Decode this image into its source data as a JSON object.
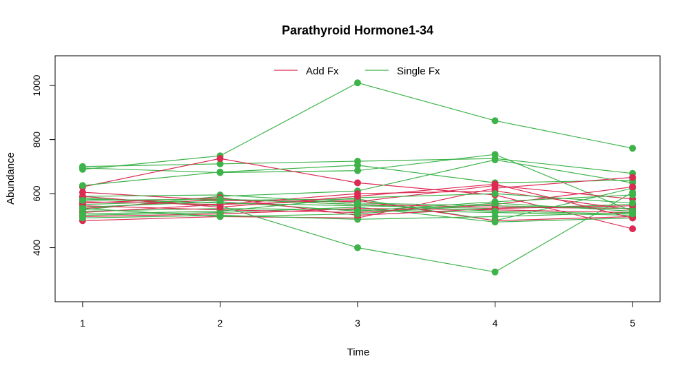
{
  "chart_data": {
    "type": "line",
    "title": "Parathyroid Hormone1-34",
    "xlabel": "Time",
    "ylabel": "Abundance",
    "x": [
      1,
      2,
      3,
      4,
      5
    ],
    "xlim": [
      0.8,
      5.2
    ],
    "ylim": [
      200,
      1110
    ],
    "x_ticks": [
      "1",
      "2",
      "3",
      "4",
      "5"
    ],
    "y_ticks": [
      "400",
      "600",
      "800",
      "1000"
    ],
    "legend_position": "top-center",
    "legend": [
      {
        "label": "Add Fx",
        "color": "#dc2a52"
      },
      {
        "label": "Single Fx",
        "color": "#3db34a"
      }
    ],
    "series": [
      {
        "group": "Single Fx",
        "color": "#3db34a",
        "values": [
          690,
          740,
          1010,
          870,
          768
        ]
      },
      {
        "group": "Single Fx",
        "color": "#3db34a",
        "values": [
          700,
          710,
          720,
          730,
          675
        ]
      },
      {
        "group": "Single Fx",
        "color": "#3db34a",
        "values": [
          695,
          678,
          685,
          745,
          535
        ]
      },
      {
        "group": "Add Fx",
        "color": "#dc2a52",
        "values": [
          625,
          730,
          640,
          595,
          470
        ]
      },
      {
        "group": "Single Fx",
        "color": "#3db34a",
        "values": [
          630,
          680,
          705,
          640,
          650
        ]
      },
      {
        "group": "Single Fx",
        "color": "#3db34a",
        "values": [
          585,
          555,
          400,
          310,
          605
        ]
      },
      {
        "group": "Single Fx",
        "color": "#3db34a",
        "values": [
          540,
          590,
          610,
          725,
          640
        ]
      },
      {
        "group": "Add Fx",
        "color": "#dc2a52",
        "values": [
          500,
          515,
          510,
          620,
          660
        ]
      },
      {
        "group": "Single Fx",
        "color": "#3db34a",
        "values": [
          560,
          575,
          580,
          500,
          620
        ]
      },
      {
        "group": "Add Fx",
        "color": "#dc2a52",
        "values": [
          570,
          560,
          575,
          500,
          515
        ]
      },
      {
        "group": "Add Fx",
        "color": "#dc2a52",
        "values": [
          605,
          575,
          570,
          630,
          580
        ]
      },
      {
        "group": "Add Fx",
        "color": "#dc2a52",
        "values": [
          545,
          580,
          560,
          550,
          545
        ]
      },
      {
        "group": "Single Fx",
        "color": "#3db34a",
        "values": [
          520,
          530,
          550,
          495,
          510
        ]
      },
      {
        "group": "Single Fx",
        "color": "#3db34a",
        "values": [
          535,
          545,
          540,
          530,
          520
        ]
      },
      {
        "group": "Add Fx",
        "color": "#dc2a52",
        "values": [
          555,
          540,
          530,
          560,
          625
        ]
      },
      {
        "group": "Single Fx",
        "color": "#3db34a",
        "values": [
          580,
          565,
          555,
          545,
          560
        ]
      },
      {
        "group": "Add Fx",
        "color": "#dc2a52",
        "values": [
          515,
          525,
          545,
          540,
          530
        ]
      },
      {
        "group": "Single Fx",
        "color": "#3db34a",
        "values": [
          510,
          520,
          505,
          515,
          530
        ]
      },
      {
        "group": "Add Fx",
        "color": "#dc2a52",
        "values": [
          530,
          560,
          600,
          610,
          540
        ]
      },
      {
        "group": "Single Fx",
        "color": "#3db34a",
        "values": [
          590,
          595,
          565,
          555,
          545
        ]
      },
      {
        "group": "Single Fx",
        "color": "#3db34a",
        "values": [
          550,
          570,
          535,
          570,
          595
        ]
      },
      {
        "group": "Add Fx",
        "color": "#dc2a52",
        "values": [
          565,
          585,
          520,
          545,
          555
        ]
      },
      {
        "group": "Single Fx",
        "color": "#3db34a",
        "values": [
          525,
          535,
          585,
          600,
          565
        ]
      },
      {
        "group": "Add Fx",
        "color": "#dc2a52",
        "values": [
          590,
          550,
          590,
          635,
          510
        ]
      },
      {
        "group": "Single Fx",
        "color": "#3db34a",
        "values": [
          545,
          515,
          525,
          565,
          535
        ]
      },
      {
        "group": "Single Fx",
        "color": "#3db34a",
        "values": [
          575,
          580,
          560,
          535,
          525
        ]
      }
    ]
  }
}
